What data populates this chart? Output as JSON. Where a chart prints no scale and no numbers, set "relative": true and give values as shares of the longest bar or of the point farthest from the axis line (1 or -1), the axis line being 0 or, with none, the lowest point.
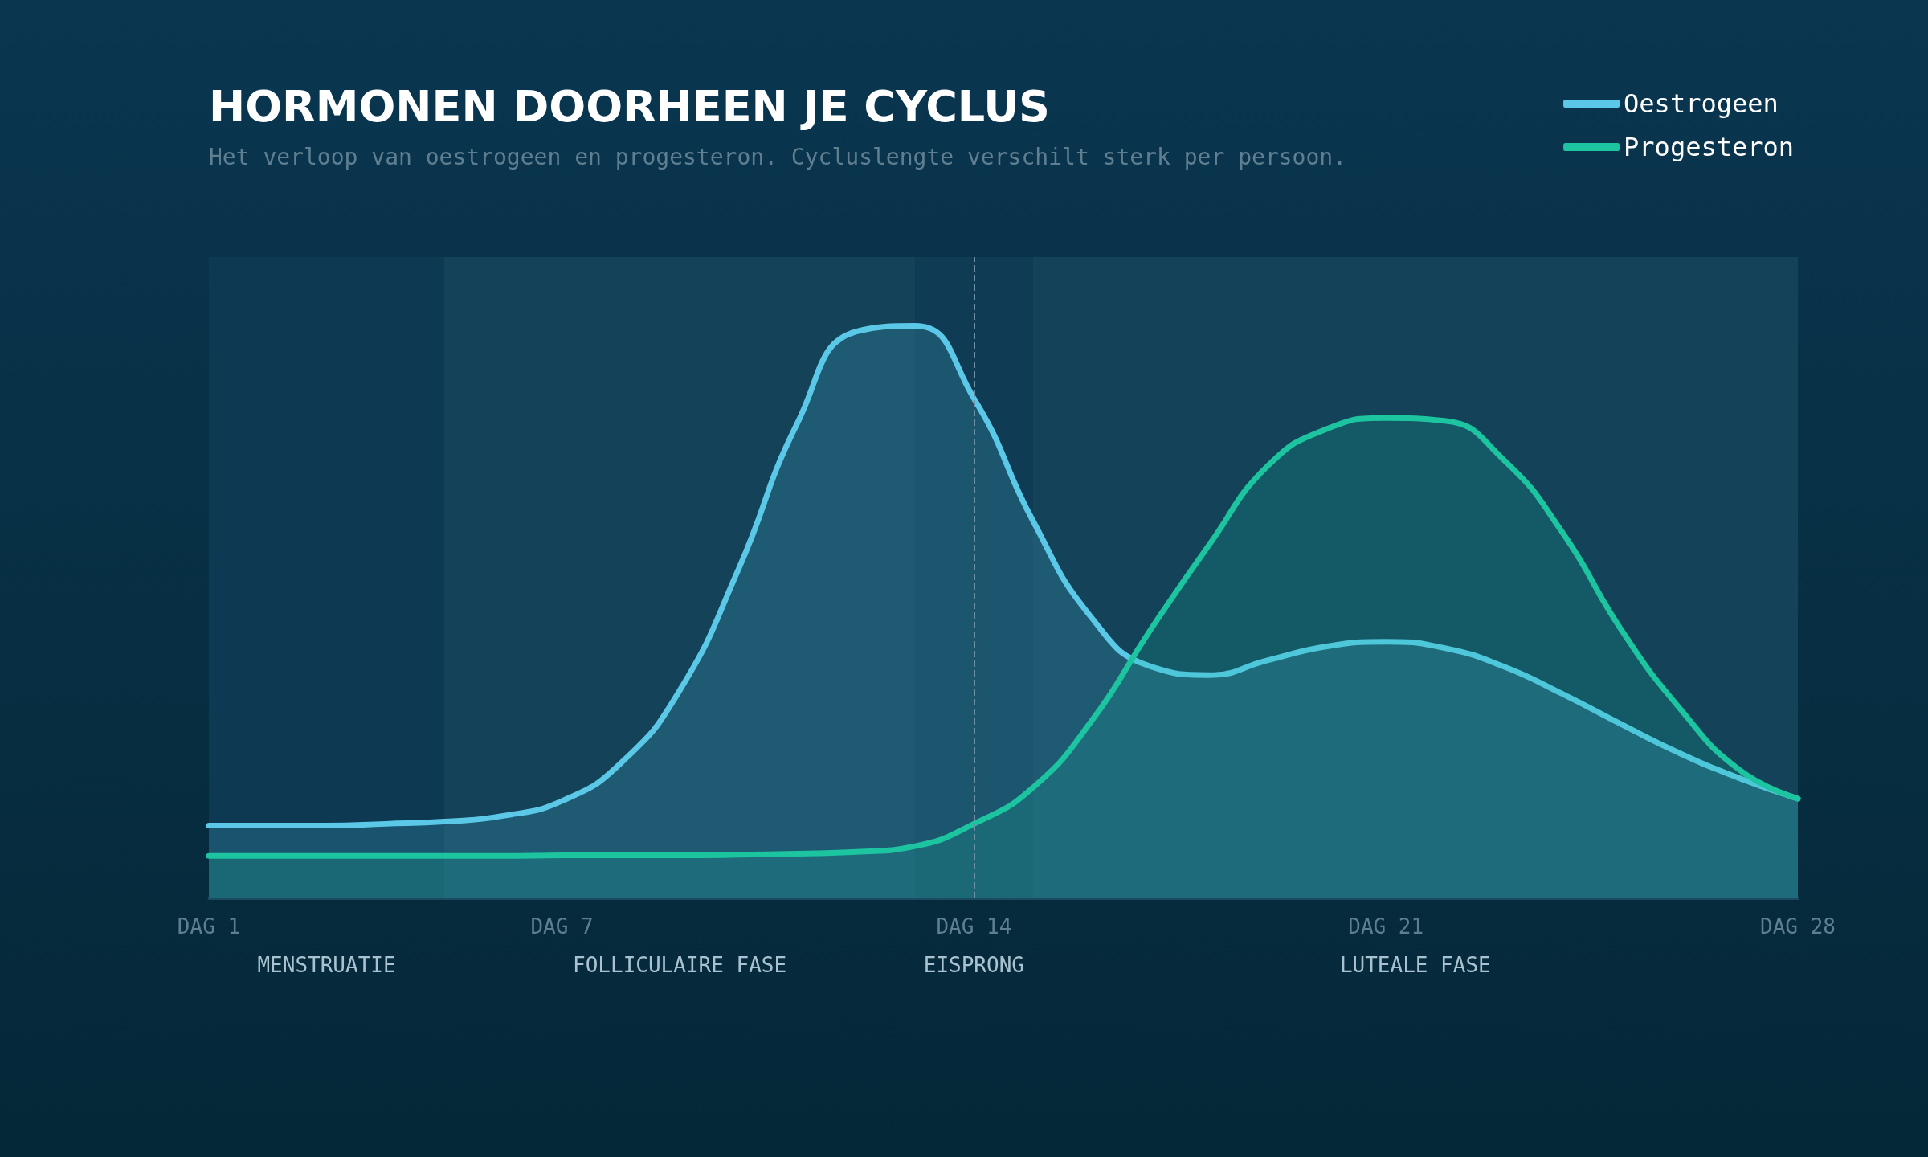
{
  "chart_data": {
    "type": "area",
    "title": "HORMONEN DOORHEEN JE CYCLUS",
    "subtitle": "Het verloop van oestrogeen en progesteron. Cycluslengte verschilt sterk per persoon.",
    "relative": true,
    "legend": "top right",
    "grid": false,
    "marker": "none",
    "line_style": "solid",
    "categories": [
      "DAG 1",
      null,
      null,
      null,
      null,
      null,
      "DAG 7",
      null,
      null,
      null,
      null,
      null,
      null,
      "DAG 14",
      null,
      null,
      null,
      null,
      null,
      null,
      "DAG 21",
      null,
      null,
      null,
      null,
      null,
      null,
      "DAG 28"
    ],
    "series": [
      {
        "name": "Oestrogeen",
        "color": "#5bc8e8",
        "values": [
          0.127,
          0.127,
          0.127,
          0.13,
          0.134,
          0.144,
          0.17,
          0.236,
          0.363,
          0.575,
          0.83,
          0.99,
          1,
          0.873,
          0.66,
          0.49,
          0.405,
          0.39,
          0.416,
          0.44,
          0.448,
          0.437,
          0.405,
          0.357,
          0.304,
          0.253,
          0.21,
          0.174
        ]
      },
      {
        "name": "Progesteron",
        "color": "#1dc4a0",
        "values": [
          0.074,
          0.074,
          0.074,
          0.074,
          0.074,
          0.074,
          0.075,
          0.075,
          0.075,
          0.076,
          0.078,
          0.081,
          0.091,
          0.13,
          0.193,
          0.31,
          0.469,
          0.618,
          0.756,
          0.82,
          0.839,
          0.834,
          0.766,
          0.639,
          0.469,
          0.331,
          0.225,
          0.174
        ]
      }
    ],
    "annotations": [
      "MENSTRUATIE",
      "FOLLICULAIRE FASE",
      "EISPRONG",
      "LUTEALE FASE"
    ],
    "ref_lines": [
      {
        "axis": "x",
        "value": "DAG 14",
        "label": null,
        "color": "#6f8fa0",
        "line_style": "dashed"
      }
    ]
  }
}
